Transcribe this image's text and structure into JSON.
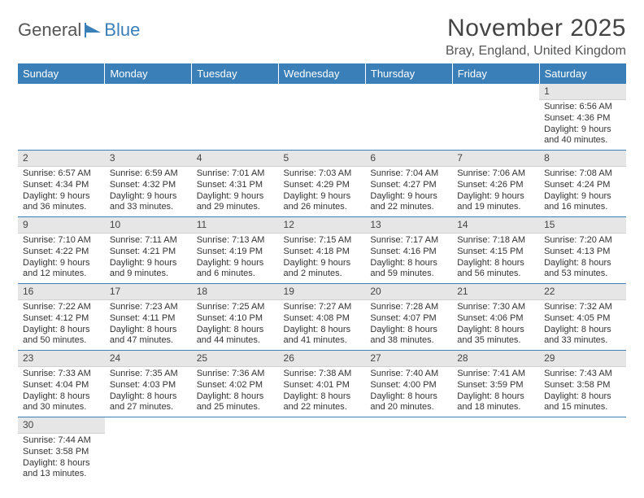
{
  "logo": {
    "part1": "General",
    "part2": "Blue"
  },
  "title": "November 2025",
  "location": "Bray, England, United Kingdom",
  "weekdays": [
    "Sunday",
    "Monday",
    "Tuesday",
    "Wednesday",
    "Thursday",
    "Friday",
    "Saturday"
  ],
  "colors": {
    "header_bg": "#3b7fb8",
    "header_fg": "#ffffff",
    "daynum_bg": "#e6e6e6",
    "border": "#3b7fb8",
    "text": "#333333",
    "logo_accent": "#3b7fb8"
  },
  "first_weekday_index": 6,
  "days": [
    {
      "n": 1,
      "sunrise": "6:56 AM",
      "sunset": "4:36 PM",
      "daylight": "9 hours and 40 minutes."
    },
    {
      "n": 2,
      "sunrise": "6:57 AM",
      "sunset": "4:34 PM",
      "daylight": "9 hours and 36 minutes."
    },
    {
      "n": 3,
      "sunrise": "6:59 AM",
      "sunset": "4:32 PM",
      "daylight": "9 hours and 33 minutes."
    },
    {
      "n": 4,
      "sunrise": "7:01 AM",
      "sunset": "4:31 PM",
      "daylight": "9 hours and 29 minutes."
    },
    {
      "n": 5,
      "sunrise": "7:03 AM",
      "sunset": "4:29 PM",
      "daylight": "9 hours and 26 minutes."
    },
    {
      "n": 6,
      "sunrise": "7:04 AM",
      "sunset": "4:27 PM",
      "daylight": "9 hours and 22 minutes."
    },
    {
      "n": 7,
      "sunrise": "7:06 AM",
      "sunset": "4:26 PM",
      "daylight": "9 hours and 19 minutes."
    },
    {
      "n": 8,
      "sunrise": "7:08 AM",
      "sunset": "4:24 PM",
      "daylight": "9 hours and 16 minutes."
    },
    {
      "n": 9,
      "sunrise": "7:10 AM",
      "sunset": "4:22 PM",
      "daylight": "9 hours and 12 minutes."
    },
    {
      "n": 10,
      "sunrise": "7:11 AM",
      "sunset": "4:21 PM",
      "daylight": "9 hours and 9 minutes."
    },
    {
      "n": 11,
      "sunrise": "7:13 AM",
      "sunset": "4:19 PM",
      "daylight": "9 hours and 6 minutes."
    },
    {
      "n": 12,
      "sunrise": "7:15 AM",
      "sunset": "4:18 PM",
      "daylight": "9 hours and 2 minutes."
    },
    {
      "n": 13,
      "sunrise": "7:17 AM",
      "sunset": "4:16 PM",
      "daylight": "8 hours and 59 minutes."
    },
    {
      "n": 14,
      "sunrise": "7:18 AM",
      "sunset": "4:15 PM",
      "daylight": "8 hours and 56 minutes."
    },
    {
      "n": 15,
      "sunrise": "7:20 AM",
      "sunset": "4:13 PM",
      "daylight": "8 hours and 53 minutes."
    },
    {
      "n": 16,
      "sunrise": "7:22 AM",
      "sunset": "4:12 PM",
      "daylight": "8 hours and 50 minutes."
    },
    {
      "n": 17,
      "sunrise": "7:23 AM",
      "sunset": "4:11 PM",
      "daylight": "8 hours and 47 minutes."
    },
    {
      "n": 18,
      "sunrise": "7:25 AM",
      "sunset": "4:10 PM",
      "daylight": "8 hours and 44 minutes."
    },
    {
      "n": 19,
      "sunrise": "7:27 AM",
      "sunset": "4:08 PM",
      "daylight": "8 hours and 41 minutes."
    },
    {
      "n": 20,
      "sunrise": "7:28 AM",
      "sunset": "4:07 PM",
      "daylight": "8 hours and 38 minutes."
    },
    {
      "n": 21,
      "sunrise": "7:30 AM",
      "sunset": "4:06 PM",
      "daylight": "8 hours and 35 minutes."
    },
    {
      "n": 22,
      "sunrise": "7:32 AM",
      "sunset": "4:05 PM",
      "daylight": "8 hours and 33 minutes."
    },
    {
      "n": 23,
      "sunrise": "7:33 AM",
      "sunset": "4:04 PM",
      "daylight": "8 hours and 30 minutes."
    },
    {
      "n": 24,
      "sunrise": "7:35 AM",
      "sunset": "4:03 PM",
      "daylight": "8 hours and 27 minutes."
    },
    {
      "n": 25,
      "sunrise": "7:36 AM",
      "sunset": "4:02 PM",
      "daylight": "8 hours and 25 minutes."
    },
    {
      "n": 26,
      "sunrise": "7:38 AM",
      "sunset": "4:01 PM",
      "daylight": "8 hours and 22 minutes."
    },
    {
      "n": 27,
      "sunrise": "7:40 AM",
      "sunset": "4:00 PM",
      "daylight": "8 hours and 20 minutes."
    },
    {
      "n": 28,
      "sunrise": "7:41 AM",
      "sunset": "3:59 PM",
      "daylight": "8 hours and 18 minutes."
    },
    {
      "n": 29,
      "sunrise": "7:43 AM",
      "sunset": "3:58 PM",
      "daylight": "8 hours and 15 minutes."
    },
    {
      "n": 30,
      "sunrise": "7:44 AM",
      "sunset": "3:58 PM",
      "daylight": "8 hours and 13 minutes."
    }
  ],
  "labels": {
    "sunrise": "Sunrise:",
    "sunset": "Sunset:",
    "daylight": "Daylight:"
  }
}
